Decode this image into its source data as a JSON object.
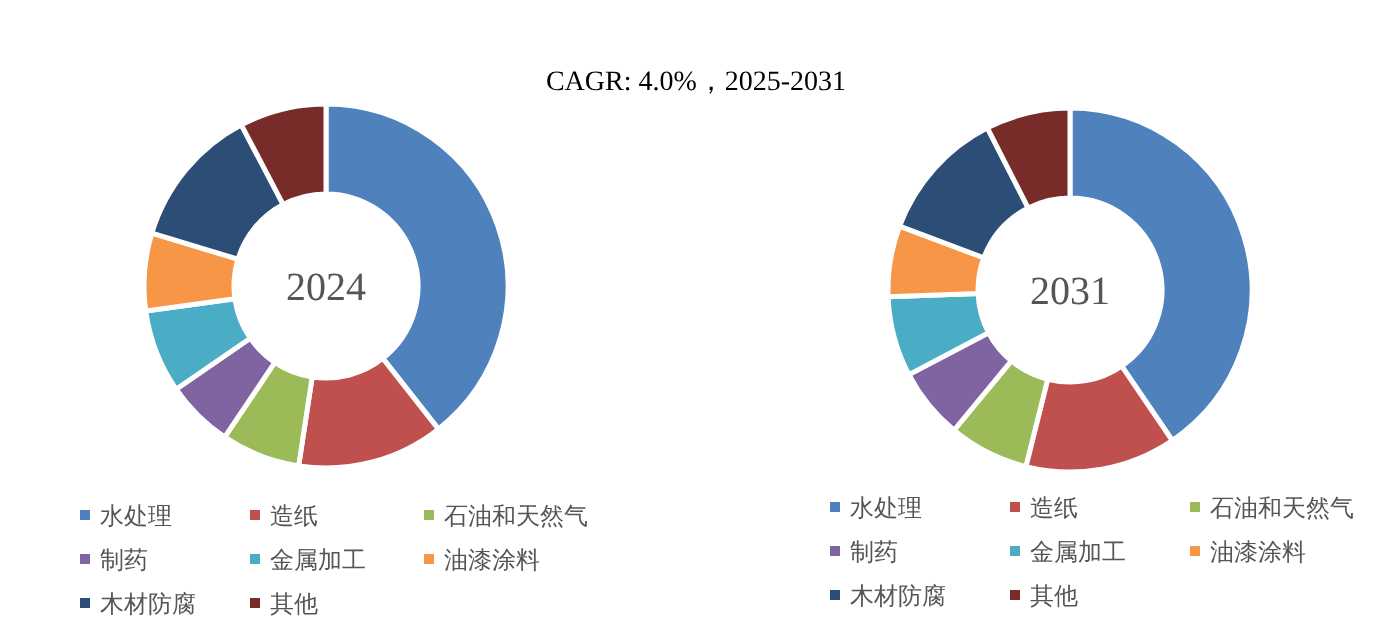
{
  "chart_data": [
    {
      "type": "donut",
      "title": "2024",
      "annotations": [
        "CAGR:  4.0%，2025-2031"
      ],
      "legend": "bottom",
      "categories": [
        "水处理",
        "造纸",
        "石油和天然气",
        "制药",
        "金属加工",
        "油漆涂料",
        "木材防腐",
        "其他"
      ],
      "values": [
        39.4,
        13,
        7,
        6,
        7.4,
        6.9,
        12.6,
        7.7
      ],
      "colors": [
        "#4f81bd",
        "#c0504d",
        "#9bbb59",
        "#8064a2",
        "#4bacc6",
        "#f79646",
        "#2c4d75",
        "#772c2a"
      ]
    },
    {
      "type": "donut",
      "title": "2031",
      "legend": "bottom",
      "categories": [
        "水处理",
        "造纸",
        "石油和天然气",
        "制药",
        "金属加工",
        "油漆涂料",
        "木材防腐",
        "其他"
      ],
      "values": [
        40.5,
        13.4,
        7.1,
        6.3,
        7.1,
        6.3,
        11.8,
        7.5
      ],
      "colors": [
        "#4f81bd",
        "#c0504d",
        "#9bbb59",
        "#8064a2",
        "#4bacc6",
        "#f79646",
        "#2c4d75",
        "#772c2a"
      ]
    }
  ]
}
